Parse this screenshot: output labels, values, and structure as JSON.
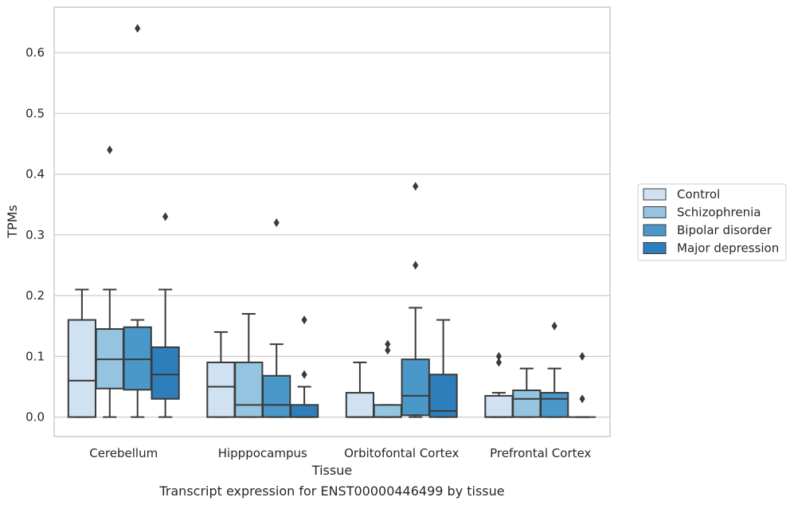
{
  "chart_data": {
    "type": "boxplot",
    "caption": "Transcript expression for ENST00000446499 by tissue",
    "xlabel": "Tissue",
    "ylabel": "TPMs",
    "ylim": [
      -0.032,
      0.675
    ],
    "yticks": [
      0.0,
      0.1,
      0.2,
      0.3,
      0.4,
      0.5,
      0.6
    ],
    "ytick_labels": [
      "0.0",
      "0.1",
      "0.2",
      "0.3",
      "0.4",
      "0.5",
      "0.6"
    ],
    "grid": true,
    "legend_position": "right",
    "categories": [
      "Cerebellum",
      "Hipppocampus",
      "Orbitofontal Cortex",
      "Prefrontal Cortex"
    ],
    "series": [
      {
        "name": "Control",
        "color": "#d0e1f2",
        "boxes": [
          {
            "whislo": 0.0,
            "q1": 0.0,
            "med": 0.06,
            "q3": 0.16,
            "whishi": 0.21,
            "fliers": []
          },
          {
            "whislo": 0.0,
            "q1": 0.0,
            "med": 0.05,
            "q3": 0.09,
            "whishi": 0.14,
            "fliers": []
          },
          {
            "whislo": 0.0,
            "q1": 0.0,
            "med": 0.0,
            "q3": 0.04,
            "whishi": 0.09,
            "fliers": []
          },
          {
            "whislo": 0.0,
            "q1": 0.0,
            "med": 0.0,
            "q3": 0.035,
            "whishi": 0.04,
            "fliers": [
              0.09,
              0.1
            ]
          }
        ]
      },
      {
        "name": "Schizophrenia",
        "color": "#94c4df",
        "boxes": [
          {
            "whislo": 0.0,
            "q1": 0.047,
            "med": 0.095,
            "q3": 0.145,
            "whishi": 0.21,
            "fliers": [
              0.44
            ]
          },
          {
            "whislo": 0.0,
            "q1": 0.0,
            "med": 0.02,
            "q3": 0.09,
            "whishi": 0.17,
            "fliers": []
          },
          {
            "whislo": 0.0,
            "q1": 0.0,
            "med": 0.0,
            "q3": 0.02,
            "whishi": 0.02,
            "fliers": [
              0.11,
              0.12
            ]
          },
          {
            "whislo": 0.0,
            "q1": 0.0,
            "med": 0.03,
            "q3": 0.044,
            "whishi": 0.08,
            "fliers": []
          }
        ]
      },
      {
        "name": "Bipolar disorder",
        "color": "#4a98c9",
        "boxes": [
          {
            "whislo": 0.0,
            "q1": 0.045,
            "med": 0.095,
            "q3": 0.148,
            "whishi": 0.16,
            "fliers": [
              0.64
            ]
          },
          {
            "whislo": 0.0,
            "q1": 0.0,
            "med": 0.02,
            "q3": 0.068,
            "whishi": 0.12,
            "fliers": [
              0.32
            ]
          },
          {
            "whislo": 0.0,
            "q1": 0.003,
            "med": 0.035,
            "q3": 0.095,
            "whishi": 0.18,
            "fliers": [
              0.25,
              0.38
            ]
          },
          {
            "whislo": 0.0,
            "q1": 0.0,
            "med": 0.03,
            "q3": 0.04,
            "whishi": 0.08,
            "fliers": [
              0.15
            ]
          }
        ]
      },
      {
        "name": "Major depression",
        "color": "#2e7ebc",
        "boxes": [
          {
            "whislo": 0.0,
            "q1": 0.03,
            "med": 0.07,
            "q3": 0.115,
            "whishi": 0.21,
            "fliers": [
              0.33
            ]
          },
          {
            "whislo": 0.0,
            "q1": 0.0,
            "med": 0.0,
            "q3": 0.02,
            "whishi": 0.05,
            "fliers": [
              0.07,
              0.16
            ]
          },
          {
            "whislo": 0.0,
            "q1": 0.0,
            "med": 0.01,
            "q3": 0.07,
            "whishi": 0.16,
            "fliers": []
          },
          {
            "whislo": 0.0,
            "q1": 0.0,
            "med": 0.0,
            "q3": 0.0,
            "whishi": 0.0,
            "fliers": [
              0.03,
              0.1
            ]
          }
        ]
      }
    ]
  }
}
